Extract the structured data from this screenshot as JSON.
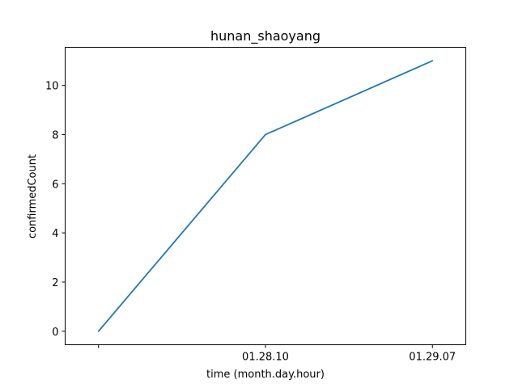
{
  "chart_data": {
    "type": "line",
    "title": "hunan_shaoyang",
    "xlabel": "time (month.day.hour)",
    "ylabel": "confirmedCount",
    "x_tick_labels": [
      "",
      "01.28.10",
      "01.29.07"
    ],
    "y_ticks": [
      0,
      2,
      4,
      6,
      8,
      10
    ],
    "ylim": [
      -0.55,
      11.55
    ],
    "grid": false,
    "series": [
      {
        "color": "#1f77b4",
        "values": [
          0,
          8,
          11
        ]
      }
    ]
  }
}
